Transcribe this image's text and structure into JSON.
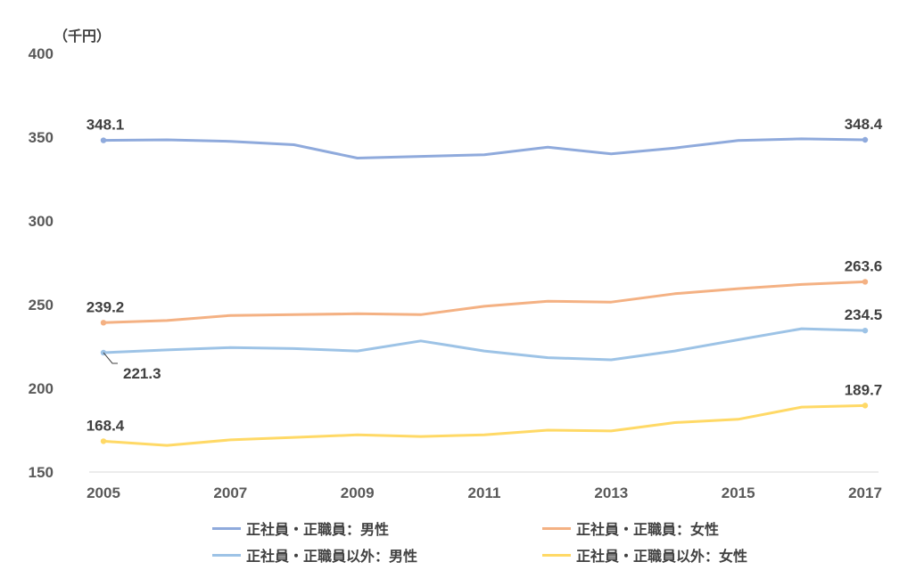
{
  "chart_data": {
    "type": "line",
    "unit_label": "（千円）",
    "ylim": [
      150,
      400
    ],
    "yticks": [
      150,
      200,
      250,
      300,
      350,
      400
    ],
    "xlim": [
      2005,
      2017
    ],
    "xticks": [
      2005,
      2007,
      2009,
      2011,
      2013,
      2015,
      2017
    ],
    "x": [
      2005,
      2006,
      2007,
      2008,
      2009,
      2010,
      2011,
      2012,
      2013,
      2014,
      2015,
      2016,
      2017
    ],
    "grid": false,
    "legend_position": "bottom",
    "series": [
      {
        "name": "正社員・正職員：男性",
        "color": "#8FAADC",
        "values": [
          348.1,
          348.4,
          347.5,
          345.5,
          337.5,
          338.5,
          339.5,
          344.0,
          340.0,
          343.5,
          348.0,
          349.0,
          348.4
        ],
        "labels": [
          {
            "index": 0,
            "text": "348.1"
          },
          {
            "index": 12,
            "text": "348.4"
          }
        ]
      },
      {
        "name": "正社員・正職員：女性",
        "color": "#F4B183",
        "values": [
          239.2,
          240.5,
          243.5,
          244.0,
          244.5,
          244.0,
          249.0,
          252.0,
          251.5,
          256.5,
          259.5,
          262.0,
          263.6
        ],
        "labels": [
          {
            "index": 0,
            "text": "239.2"
          },
          {
            "index": 12,
            "text": "263.6"
          }
        ]
      },
      {
        "name": "正社員・正職員以外：男性",
        "color": "#9DC3E6",
        "values": [
          221.3,
          222.9,
          224.3,
          223.7,
          222.3,
          228.3,
          222.3,
          218.3,
          217.0,
          222.3,
          229.0,
          235.6,
          234.5
        ],
        "labels": [
          {
            "index": 0,
            "text": "221.3"
          },
          {
            "index": 12,
            "text": "234.5"
          }
        ]
      },
      {
        "name": "正社員・正職員以外：女性",
        "color": "#FFD966",
        "values": [
          168.4,
          165.9,
          169.2,
          170.7,
          172.2,
          171.2,
          172.2,
          175.0,
          174.5,
          179.5,
          181.5,
          188.8,
          189.7
        ],
        "labels": [
          {
            "index": 0,
            "text": "168.4"
          },
          {
            "index": 12,
            "text": "189.7"
          }
        ]
      }
    ]
  }
}
